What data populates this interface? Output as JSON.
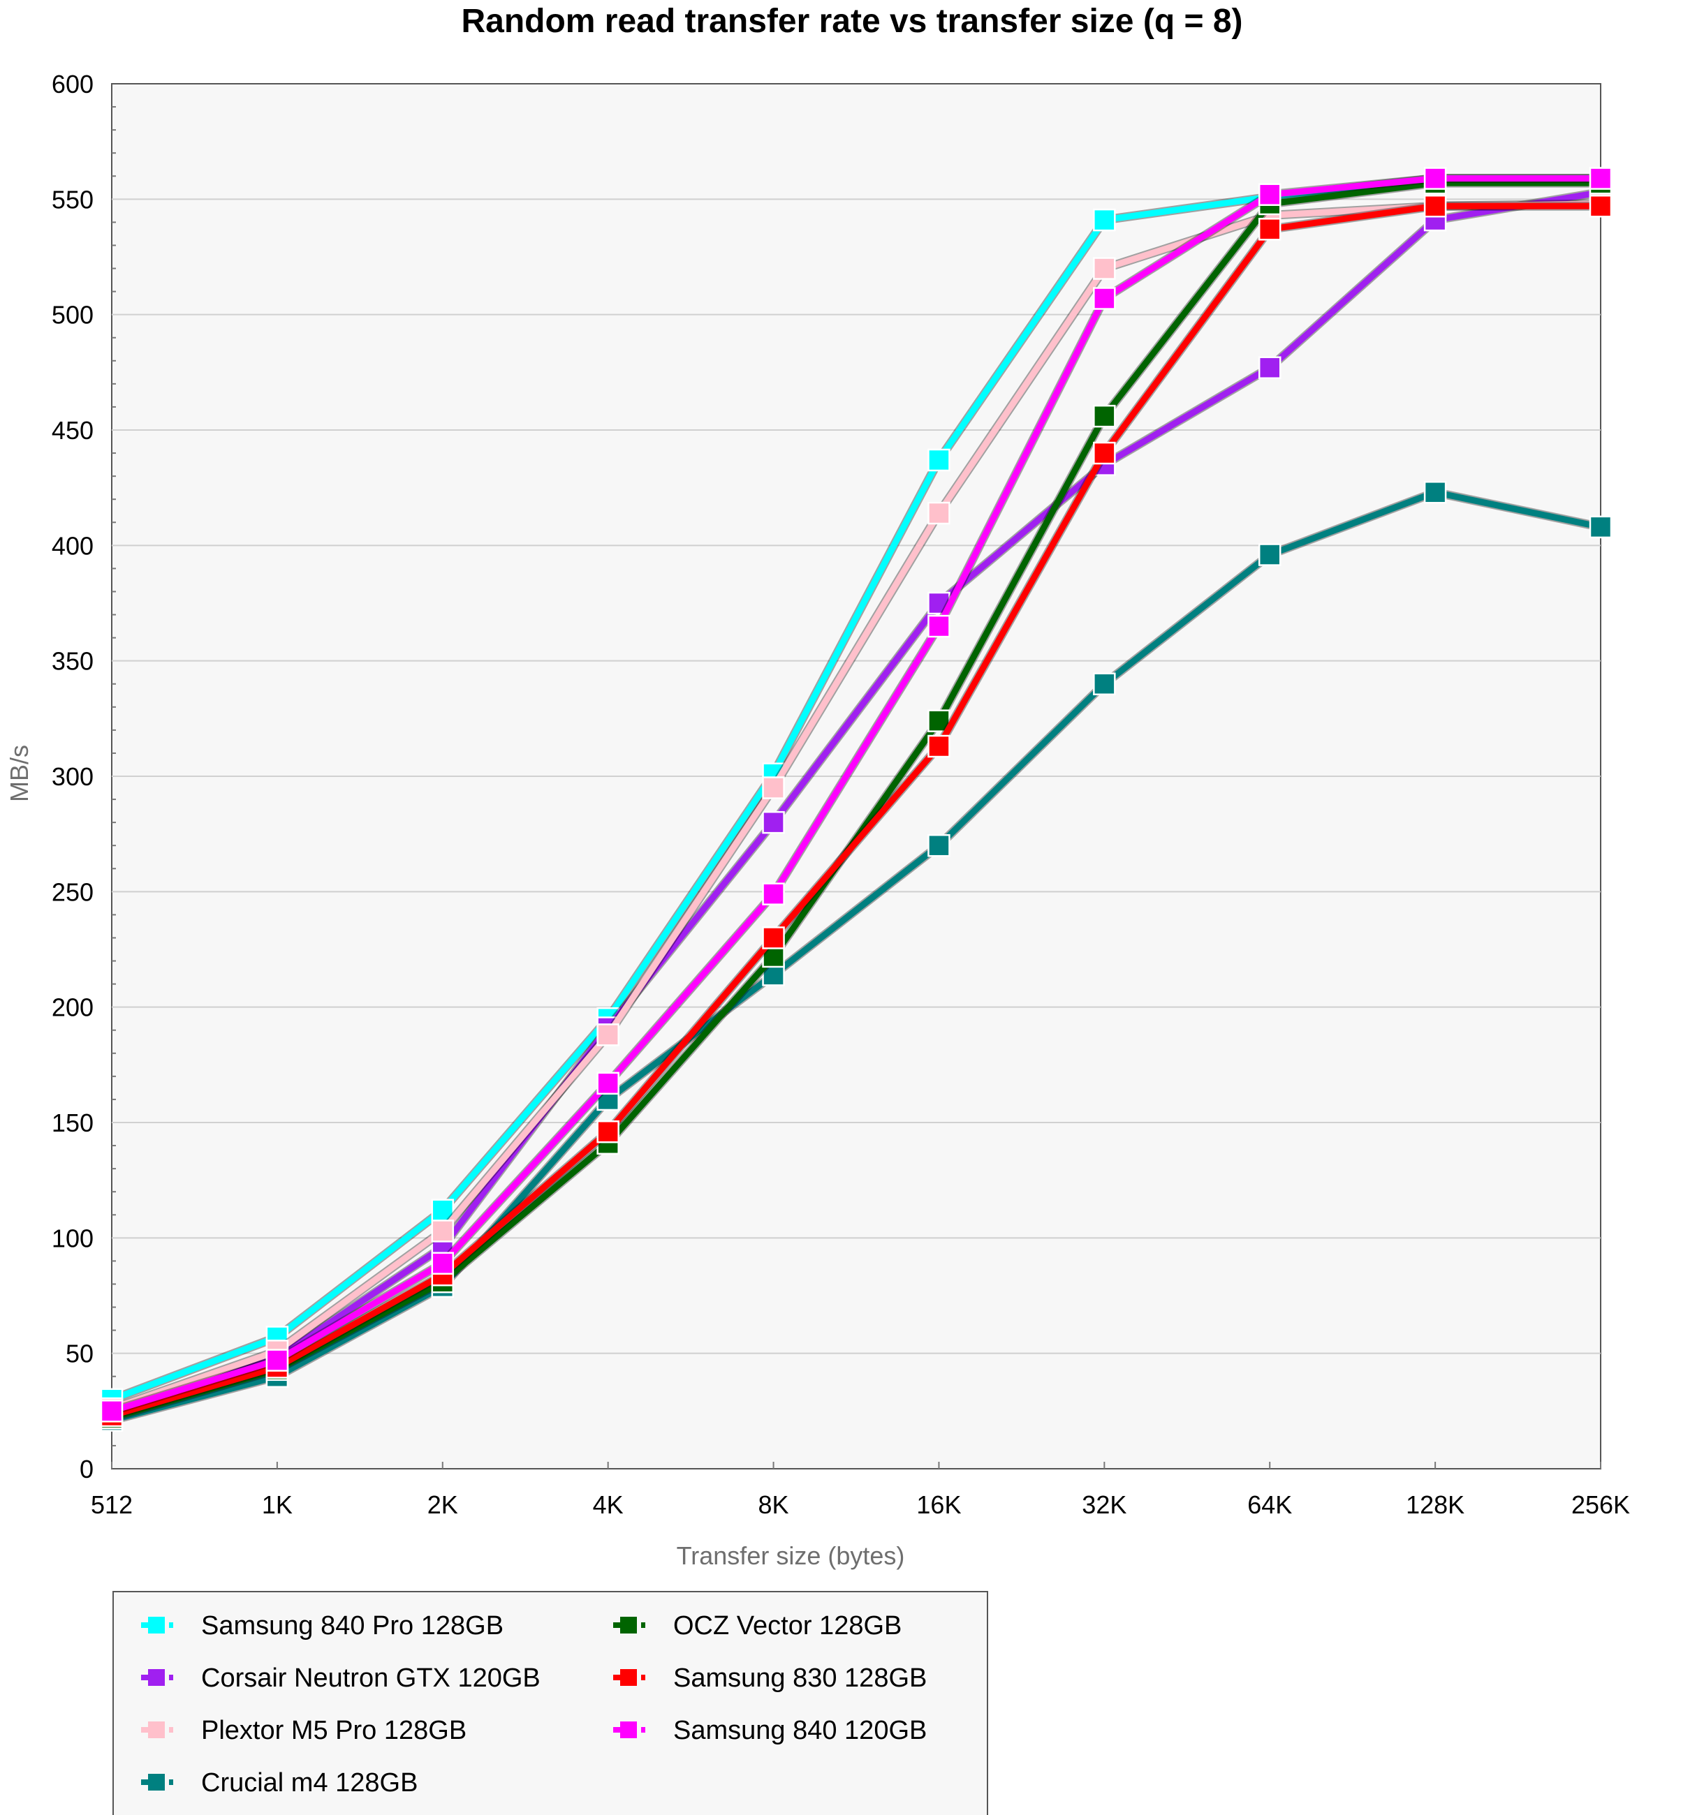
{
  "chart_data": {
    "type": "line",
    "title": "Random read transfer rate vs transfer size (q = 8)",
    "xlabel": "Transfer size (bytes)",
    "ylabel": "MB/s",
    "categories": [
      "512",
      "1K",
      "2K",
      "4K",
      "8K",
      "16K",
      "32K",
      "64K",
      "128K",
      "256K"
    ],
    "ylim": [
      0,
      600
    ],
    "yticks": [
      "0",
      "50",
      "100",
      "150",
      "200",
      "250",
      "300",
      "350",
      "400",
      "450",
      "500",
      "550",
      "600"
    ],
    "grid": "horizontal",
    "legend_position": "bottom-left",
    "series": [
      {
        "name": "Samsung 840 Pro 128GB",
        "color": "#00ffff",
        "values": [
          30,
          57,
          112,
          195,
          301,
          437,
          541,
          551,
          559,
          559
        ]
      },
      {
        "name": "Corsair Neutron GTX 120GB",
        "color": "#a020f0",
        "values": [
          24,
          48,
          96,
          191,
          280,
          375,
          435,
          477,
          541,
          553
        ]
      },
      {
        "name": "Plextor M5 Pro 128GB",
        "color": "#ffc0cb",
        "values": [
          26,
          51,
          103,
          188,
          295,
          414,
          520,
          543,
          547,
          548
        ]
      },
      {
        "name": "Crucial m4 128GB",
        "color": "#008080",
        "values": [
          21,
          40,
          79,
          160,
          214,
          270,
          340,
          396,
          423,
          408
        ]
      },
      {
        "name": "OCZ Vector 128GB",
        "color": "#006400",
        "values": [
          22,
          43,
          81,
          141,
          222,
          324,
          456,
          548,
          557,
          557
        ]
      },
      {
        "name": "Samsung 830 128GB",
        "color": "#ff0000",
        "values": [
          23,
          44,
          84,
          146,
          230,
          313,
          440,
          537,
          547,
          547
        ]
      },
      {
        "name": "Samsung 840 120GB",
        "color": "#ff00ff",
        "values": [
          25,
          47,
          89,
          167,
          249,
          365,
          507,
          552,
          559,
          559
        ]
      }
    ]
  }
}
